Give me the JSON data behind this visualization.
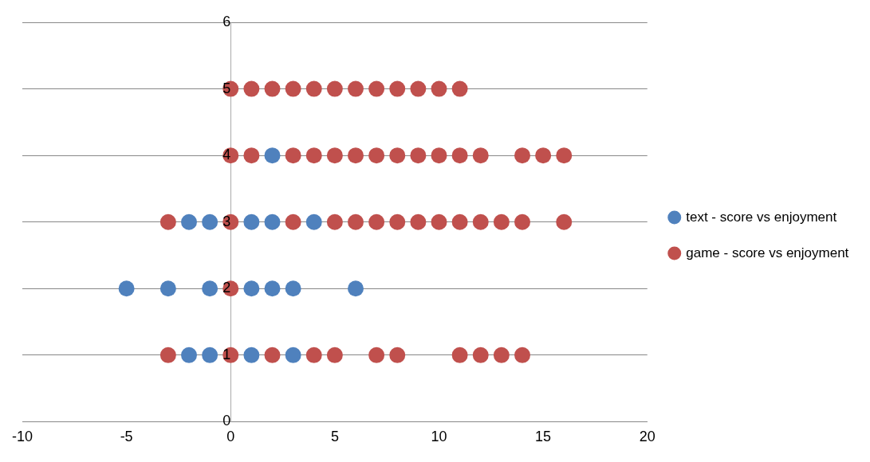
{
  "chart_data": {
    "type": "scatter",
    "xlim": [
      -10,
      20
    ],
    "xticks": [
      -10,
      -5,
      0,
      5,
      10,
      15,
      20
    ],
    "ylim": [
      0,
      6
    ],
    "yticks": [
      0,
      1,
      2,
      3,
      4,
      5,
      6
    ],
    "grid": "y",
    "legend": "right",
    "marker": "circle",
    "series": [
      {
        "name": "text - score vs enjoyment",
        "color": "#4f81bd",
        "x": [
          2,
          -2,
          -1,
          1,
          2,
          4,
          -5,
          -3,
          -1,
          1,
          2,
          3,
          6,
          -2,
          -1,
          1,
          3
        ],
        "values": [
          4,
          3,
          3,
          3,
          3,
          3,
          2,
          2,
          2,
          2,
          2,
          2,
          2,
          1,
          1,
          1,
          1
        ]
      },
      {
        "name": "game - score vs enjoyment",
        "color": "#c0504d",
        "x": [
          0,
          1,
          2,
          3,
          4,
          5,
          6,
          7,
          8,
          9,
          10,
          11,
          0,
          1,
          3,
          4,
          5,
          6,
          7,
          8,
          9,
          10,
          11,
          12,
          14,
          15,
          16,
          -3,
          0,
          3,
          5,
          6,
          7,
          8,
          9,
          10,
          11,
          12,
          13,
          14,
          16,
          0,
          -3,
          0,
          2,
          4,
          5,
          7,
          8,
          11,
          12,
          13,
          14
        ],
        "values": [
          5,
          5,
          5,
          5,
          5,
          5,
          5,
          5,
          5,
          5,
          5,
          5,
          4,
          4,
          4,
          4,
          4,
          4,
          4,
          4,
          4,
          4,
          4,
          4,
          4,
          4,
          4,
          3,
          3,
          3,
          3,
          3,
          3,
          3,
          3,
          3,
          3,
          3,
          3,
          3,
          3,
          2,
          1,
          1,
          1,
          1,
          1,
          1,
          1,
          1,
          1,
          1,
          1
        ]
      }
    ]
  }
}
